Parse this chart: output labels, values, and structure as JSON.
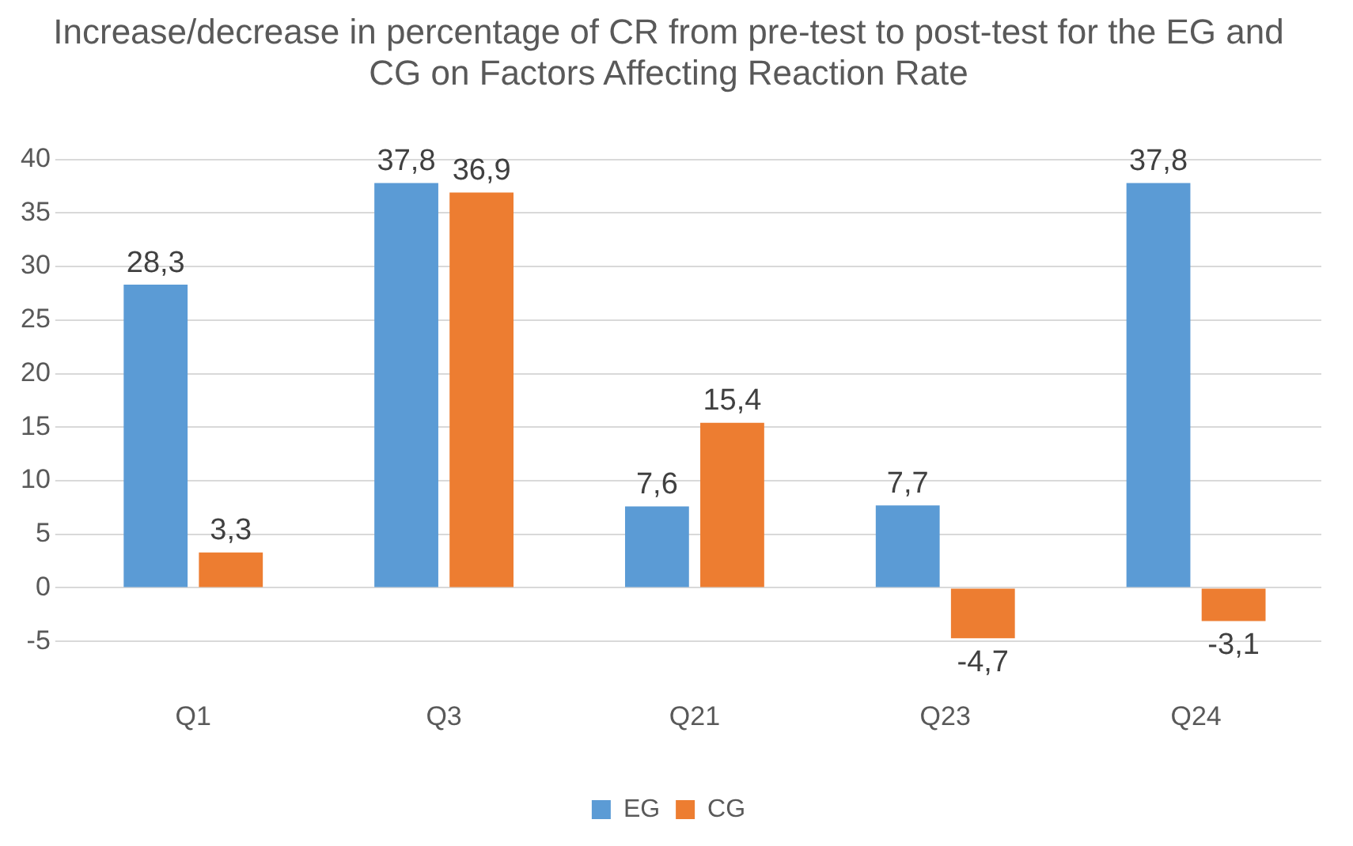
{
  "chart_data": {
    "type": "bar",
    "title": "Increase/decrease in percentage of CR from pre-test to post-test for the EG and CG on Factors Affecting Reaction Rate",
    "categories": [
      "Q1",
      "Q3",
      "Q21",
      "Q23",
      "Q24"
    ],
    "series": [
      {
        "name": "EG",
        "color": "#5b9bd5",
        "values": [
          28.3,
          37.8,
          7.6,
          7.7,
          37.8
        ],
        "value_labels": [
          "28,3",
          "37,8",
          "7,6",
          "7,7",
          "37,8"
        ]
      },
      {
        "name": "CG",
        "color": "#ed7d31",
        "values": [
          3.3,
          36.9,
          15.4,
          -4.7,
          -3.1
        ],
        "value_labels": [
          "3,3",
          "36,9",
          "15,4",
          "-4,7",
          "-3,1"
        ]
      }
    ],
    "ylim": [
      -5,
      40
    ],
    "yticks": [
      -5,
      0,
      5,
      10,
      15,
      20,
      25,
      30,
      35,
      40
    ],
    "grid": "y",
    "legend": "bottom"
  }
}
